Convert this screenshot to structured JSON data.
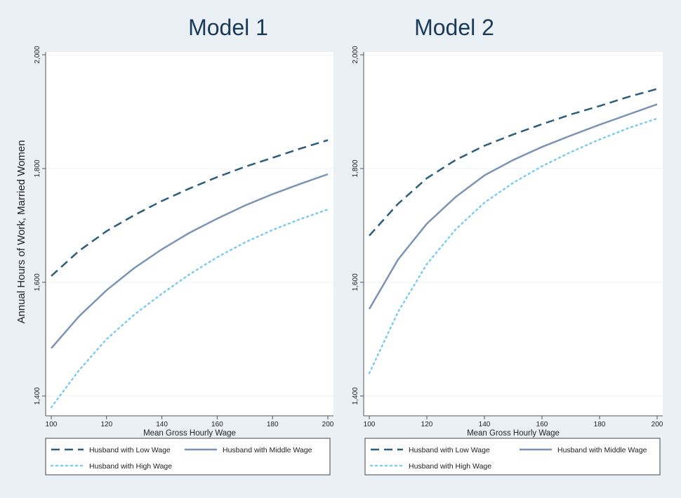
{
  "ylabel": "Annual Hours of Work, Married Women",
  "colors": {
    "background": "#eaf0f4",
    "plot_background": "#ffffff",
    "axis": "#555555",
    "grid": "#eef2f5",
    "title": "#1a3a5c",
    "low": "#2c5d7a",
    "middle": "#7b93b5",
    "high": "#7ccbf0"
  },
  "chart_data": [
    {
      "type": "line",
      "title": "Model 1",
      "xlabel": "Mean Gross Hourly Wage",
      "ylabel": "Annual Hours of Work, Married Women",
      "xlim": [
        100,
        200
      ],
      "ylim": [
        1380,
        2000
      ],
      "x_ticks": [
        100,
        120,
        140,
        160,
        180,
        200
      ],
      "y_ticks": [
        1400,
        1600,
        1800,
        2000
      ],
      "y_tick_labels": [
        "1,400",
        "1,600",
        "1,800",
        "2,000"
      ],
      "grid": true,
      "x": [
        100,
        110,
        120,
        130,
        140,
        150,
        160,
        170,
        180,
        190,
        200
      ],
      "series": [
        {
          "name": "Husband with Low Wage",
          "style": "dashed",
          "color": "#2c5d7a",
          "values": [
            1611,
            1655,
            1690,
            1718,
            1743,
            1765,
            1785,
            1803,
            1819,
            1835,
            1850
          ]
        },
        {
          "name": "Husband with Middle Wage",
          "style": "solid",
          "color": "#7b93b5",
          "values": [
            1484,
            1540,
            1586,
            1625,
            1658,
            1687,
            1712,
            1735,
            1755,
            1773,
            1790
          ]
        },
        {
          "name": "Husband with High Wage",
          "style": "dotted",
          "color": "#7ccbf0",
          "values": [
            1380,
            1445,
            1500,
            1543,
            1580,
            1614,
            1644,
            1670,
            1692,
            1711,
            1728
          ]
        }
      ],
      "legend_position": "bottom"
    },
    {
      "type": "line",
      "title": "Model 2",
      "xlabel": "Mean Gross Hourly Wage",
      "xlim": [
        100,
        200
      ],
      "ylim": [
        1380,
        2000
      ],
      "x_ticks": [
        100,
        120,
        140,
        160,
        180,
        200
      ],
      "y_ticks": [
        1400,
        1600,
        1800,
        2000
      ],
      "y_tick_labels": [
        "1,400",
        "1,600",
        "1,800",
        "2,000"
      ],
      "grid": true,
      "x": [
        100,
        110,
        120,
        130,
        140,
        150,
        160,
        170,
        180,
        190,
        200
      ],
      "series": [
        {
          "name": "Husband with Low Wage",
          "style": "dashed",
          "color": "#2c5d7a",
          "values": [
            1682,
            1738,
            1783,
            1815,
            1840,
            1860,
            1878,
            1895,
            1910,
            1926,
            1940
          ]
        },
        {
          "name": "Husband with Middle Wage",
          "style": "solid",
          "color": "#7b93b5",
          "values": [
            1553,
            1640,
            1703,
            1750,
            1788,
            1815,
            1838,
            1858,
            1877,
            1895,
            1913
          ]
        },
        {
          "name": "Husband with High Wage",
          "style": "dotted",
          "color": "#7ccbf0",
          "values": [
            1440,
            1548,
            1632,
            1693,
            1740,
            1775,
            1804,
            1829,
            1851,
            1871,
            1888
          ]
        }
      ],
      "legend_position": "bottom"
    }
  ]
}
